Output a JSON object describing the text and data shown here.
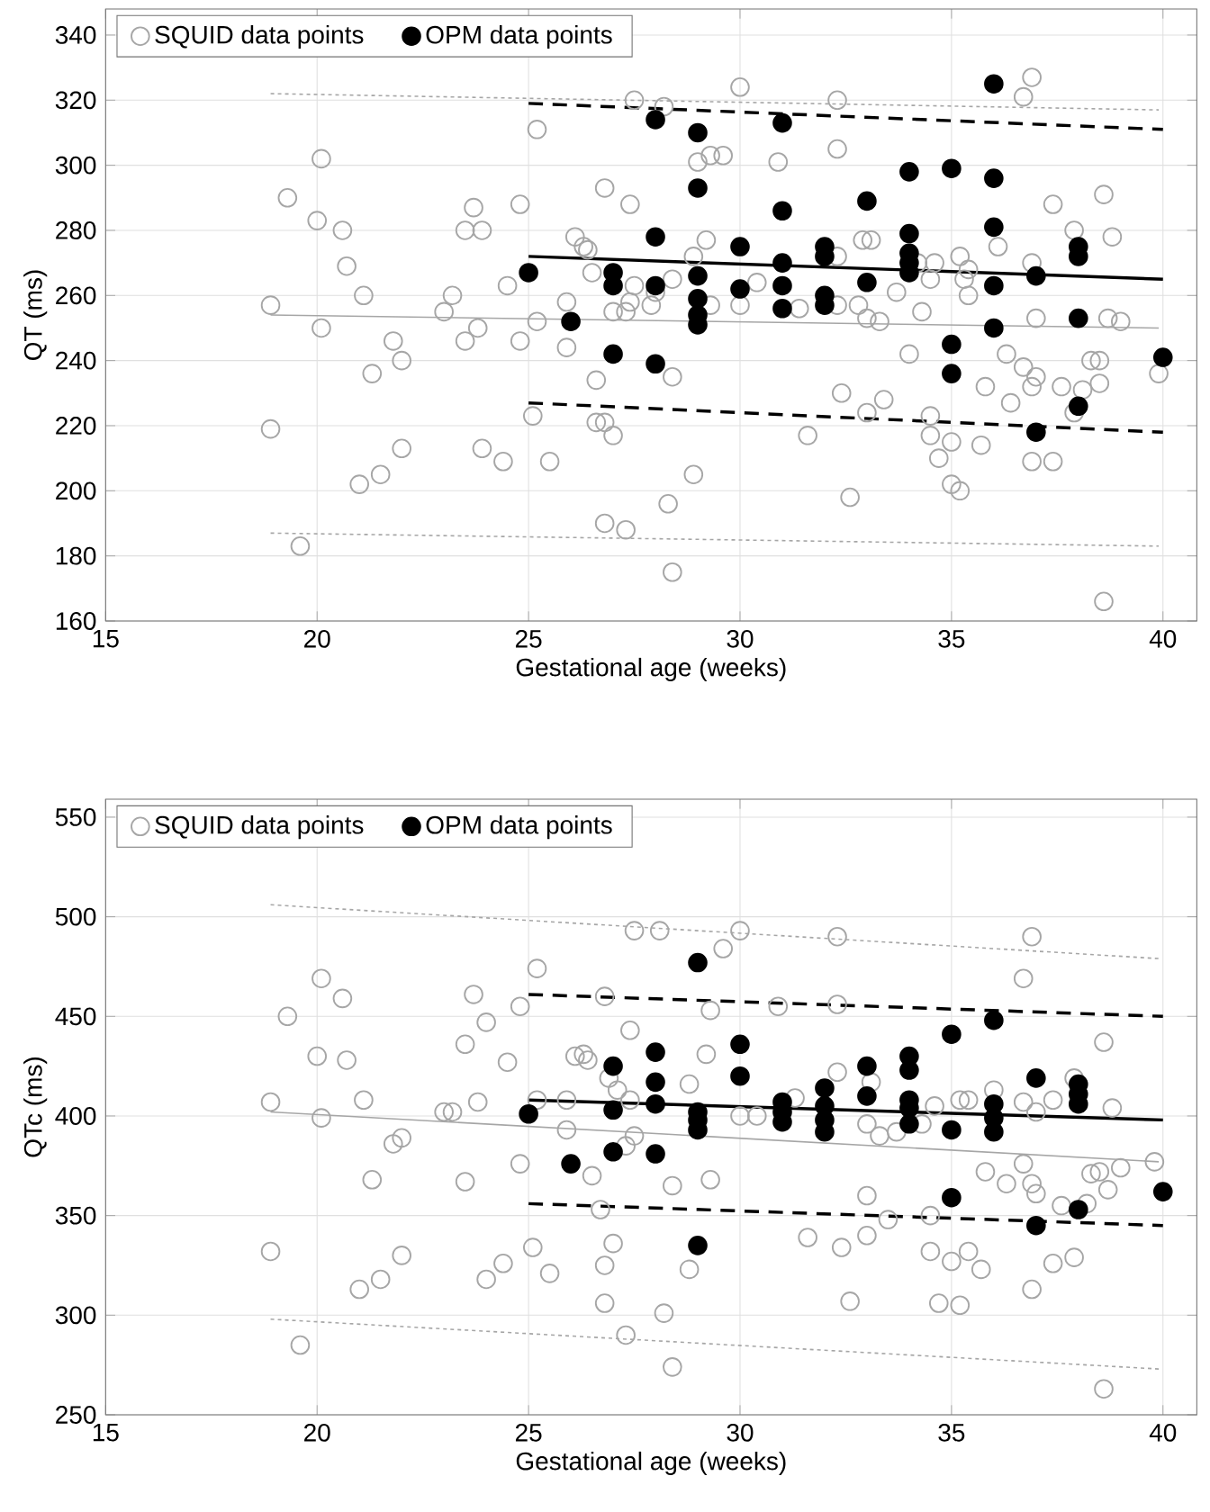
{
  "chart_data": [
    {
      "type": "scatter",
      "xlabel": "Gestational age (weeks)",
      "ylabel": "QT (ms)",
      "xlim": [
        15,
        40.8
      ],
      "ylim": [
        160,
        348
      ],
      "xticks": [
        15,
        20,
        25,
        30,
        35,
        40
      ],
      "yticks": [
        160,
        180,
        200,
        220,
        240,
        260,
        280,
        300,
        320,
        340
      ],
      "grid": true,
      "legend": "top left",
      "marker": "circle",
      "series": [
        {
          "name": "SQUID data points",
          "color": "#a6a6a6",
          "x": [
            18.9,
            19.3,
            18.9,
            19.6,
            20.1,
            20.0,
            20.6,
            20.7,
            20.1,
            21.1,
            21.3,
            21.0,
            21.5,
            21.8,
            22.0,
            22.0,
            23.0,
            23.2,
            23.5,
            23.8,
            23.7,
            23.5,
            23.9,
            23.9,
            24.4,
            24.5,
            24.8,
            24.8,
            25.1,
            25.2,
            25.2,
            25.5,
            25.9,
            25.9,
            26.1,
            26.3,
            26.4,
            26.5,
            26.6,
            26.8,
            26.6,
            26.8,
            27.0,
            26.8,
            27.3,
            27.0,
            27.3,
            27.4,
            27.5,
            27.4,
            27.5,
            28.2,
            27.9,
            28.0,
            28.4,
            28.4,
            28.4,
            28.9,
            29.0,
            29.3,
            29.6,
            29.2,
            29.3,
            28.9,
            28.3,
            30.0,
            30.0,
            30.4,
            30.9,
            31.4,
            31.6,
            32.3,
            32.3,
            32.3,
            32.3,
            32.4,
            32.6,
            32.8,
            32.9,
            33.1,
            33.0,
            33.3,
            33.0,
            33.4,
            33.7,
            34.0,
            34.3,
            34.2,
            34.5,
            34.6,
            34.5,
            34.5,
            34.7,
            35.0,
            35.2,
            35.3,
            35.4,
            35.4,
            35.0,
            35.2,
            35.7,
            35.8,
            36.1,
            36.3,
            36.4,
            36.7,
            36.7,
            36.9,
            36.9,
            37.0,
            36.9,
            37.0,
            36.9,
            37.4,
            37.4,
            37.6,
            37.9,
            38.1,
            38.3,
            38.5,
            38.5,
            38.6,
            38.8,
            38.7,
            39.0,
            39.9,
            38.6,
            37.9
          ],
          "values": [
            257,
            290,
            219,
            183,
            302,
            283,
            280,
            269,
            250,
            260,
            236,
            202,
            205,
            246,
            240,
            213,
            255,
            260,
            246,
            250,
            287,
            280,
            280,
            213,
            209,
            263,
            288,
            246,
            223,
            311,
            252,
            209,
            258,
            244,
            278,
            275,
            274,
            267,
            234,
            293,
            221,
            221,
            217,
            190,
            188,
            255,
            255,
            258,
            263,
            288,
            320,
            318,
            257,
            261,
            265,
            235,
            175,
            272,
            301,
            303,
            303,
            277,
            257,
            205,
            196,
            324,
            257,
            264,
            301,
            256,
            217,
            320,
            305,
            272,
            257,
            230,
            198,
            257,
            277,
            277,
            253,
            252,
            224,
            228,
            261,
            242,
            255,
            270,
            265,
            270,
            223,
            217,
            210,
            215,
            272,
            265,
            268,
            260,
            202,
            200,
            214,
            232,
            275,
            242,
            227,
            238,
            321,
            327,
            270,
            253,
            232,
            235,
            209,
            209,
            288,
            232,
            280,
            231,
            240,
            240,
            233,
            291,
            278,
            253,
            252,
            236,
            166,
            224
          ]
        },
        {
          "name": "OPM data points",
          "color": "#000000",
          "x": [
            25,
            26,
            27,
            27,
            27,
            28,
            28,
            28,
            28,
            29,
            29,
            29,
            29,
            29,
            29,
            30,
            30,
            31,
            31,
            31,
            31,
            31,
            32,
            32,
            32,
            32,
            33,
            33,
            34,
            34,
            34,
            34,
            34,
            35,
            35,
            35,
            36,
            36,
            36,
            36,
            36,
            37,
            37,
            38,
            38,
            38,
            38,
            40
          ],
          "values": [
            267,
            252,
            267,
            263,
            242,
            314,
            278,
            263,
            239,
            310,
            293,
            266,
            259,
            254,
            251,
            275,
            262,
            313,
            286,
            270,
            263,
            256,
            275,
            272,
            260,
            257,
            289,
            264,
            298,
            279,
            273,
            270,
            267,
            299,
            245,
            236,
            325,
            296,
            281,
            263,
            250,
            266,
            218,
            275,
            272,
            253,
            226,
            241
          ]
        },
        {
          "type": "line",
          "color": "#a6a6a6",
          "line_style": "solid",
          "marker": "none",
          "x": [
            18.9,
            39.9
          ],
          "values": [
            254,
            250
          ]
        },
        {
          "type": "line",
          "color": "#a6a6a6",
          "line_style": "dotted",
          "marker": "none",
          "x": [
            18.9,
            39.9
          ],
          "values": [
            322,
            317
          ]
        },
        {
          "type": "line",
          "color": "#a6a6a6",
          "line_style": "dotted",
          "marker": "none",
          "x": [
            18.9,
            39.9
          ],
          "values": [
            187,
            183
          ]
        },
        {
          "type": "line",
          "color": "#000000",
          "line_style": "solid",
          "marker": "none",
          "x": [
            25,
            40
          ],
          "values": [
            272,
            265
          ]
        },
        {
          "type": "line",
          "color": "#000000",
          "line_style": "dashed",
          "marker": "none",
          "x": [
            25,
            40
          ],
          "values": [
            319,
            311
          ]
        },
        {
          "type": "line",
          "color": "#000000",
          "line_style": "dashed",
          "marker": "none",
          "x": [
            25,
            40
          ],
          "values": [
            227,
            218
          ]
        }
      ]
    },
    {
      "type": "scatter",
      "xlabel": "Gestational age (weeks)",
      "ylabel": "QTc (ms)",
      "xlim": [
        15,
        40.8
      ],
      "ylim": [
        250,
        559
      ],
      "xticks": [
        15,
        20,
        25,
        30,
        35,
        40
      ],
      "yticks": [
        250,
        300,
        350,
        400,
        450,
        500,
        550
      ],
      "grid": true,
      "legend": "top left",
      "marker": "circle",
      "series": [
        {
          "name": "SQUID data points",
          "color": "#a6a6a6",
          "x": [
            18.9,
            19.3,
            18.9,
            19.6,
            20.1,
            20.6,
            20.0,
            20.7,
            20.1,
            21.1,
            21.3,
            21.0,
            21.5,
            21.8,
            22.0,
            22.0,
            23.0,
            23.2,
            23.5,
            23.7,
            24.0,
            23.8,
            23.5,
            24.0,
            24.4,
            24.5,
            24.8,
            24.8,
            25.1,
            25.2,
            25.2,
            25.5,
            25.9,
            25.9,
            26.1,
            26.3,
            26.4,
            26.5,
            26.7,
            26.8,
            26.9,
            27.0,
            26.8,
            26.8,
            27.1,
            27.3,
            27.5,
            27.4,
            27.4,
            27.3,
            27.5,
            28.1,
            28.2,
            28.4,
            28.4,
            28.8,
            28.8,
            29.2,
            29.3,
            29.3,
            29.6,
            30.0,
            30.0,
            30.4,
            30.9,
            31.3,
            31.6,
            32.3,
            32.3,
            32.3,
            32.4,
            32.6,
            33.0,
            33.0,
            33.3,
            33.1,
            33.0,
            33.5,
            33.7,
            34.5,
            34.5,
            34.3,
            34.6,
            34.7,
            35.0,
            35.2,
            35.2,
            35.4,
            35.4,
            35.7,
            35.8,
            36.0,
            36.3,
            36.7,
            36.7,
            36.9,
            36.7,
            36.9,
            37.0,
            37.0,
            36.9,
            37.4,
            37.6,
            37.9,
            37.4,
            37.9,
            38.2,
            38.3,
            38.5,
            38.6,
            38.7,
            38.8,
            39.0,
            39.8,
            38.6
          ],
          "values": [
            407,
            450,
            332,
            285,
            469,
            459,
            430,
            428,
            399,
            408,
            368,
            313,
            318,
            386,
            389,
            330,
            402,
            402,
            436,
            461,
            447,
            407,
            367,
            318,
            326,
            427,
            455,
            376,
            334,
            474,
            408,
            321,
            408,
            393,
            430,
            431,
            428,
            370,
            353,
            460,
            419,
            336,
            325,
            306,
            413,
            290,
            493,
            443,
            408,
            385,
            390,
            493,
            301,
            365,
            274,
            416,
            323,
            431,
            368,
            453,
            484,
            493,
            400,
            400,
            455,
            409,
            339,
            490,
            456,
            422,
            334,
            307,
            360,
            396,
            390,
            417,
            340,
            348,
            392,
            350,
            332,
            396,
            405,
            306,
            327,
            305,
            408,
            408,
            332,
            323,
            372,
            413,
            366,
            407,
            469,
            490,
            376,
            366,
            402,
            361,
            313,
            326,
            355,
            329,
            408,
            419,
            356,
            371,
            372,
            437,
            363,
            404,
            374,
            377,
            263
          ]
        },
        {
          "name": "OPM data points",
          "color": "#000000",
          "x": [
            25,
            26,
            27,
            27,
            27,
            28,
            28,
            28,
            28,
            29,
            29,
            29,
            29,
            29,
            30,
            30,
            31,
            31,
            31,
            32,
            32,
            32,
            32,
            33,
            33,
            34,
            34,
            34,
            34,
            34,
            35,
            35,
            35,
            36,
            36,
            36,
            36,
            37,
            37,
            38,
            38,
            38,
            38,
            40
          ],
          "values": [
            401,
            376,
            425,
            403,
            382,
            432,
            417,
            406,
            381,
            477,
            402,
            398,
            393,
            335,
            436,
            420,
            407,
            402,
            397,
            414,
            405,
            398,
            392,
            425,
            410,
            430,
            423,
            408,
            404,
            396,
            441,
            393,
            359,
            448,
            406,
            399,
            392,
            419,
            345,
            416,
            411,
            406,
            353,
            362
          ]
        },
        {
          "type": "line",
          "color": "#a6a6a6",
          "line_style": "solid",
          "marker": "none",
          "x": [
            18.9,
            39.9
          ],
          "values": [
            402,
            377
          ]
        },
        {
          "type": "line",
          "color": "#a6a6a6",
          "line_style": "dotted",
          "marker": "none",
          "x": [
            18.9,
            39.9
          ],
          "values": [
            506,
            479
          ]
        },
        {
          "type": "line",
          "color": "#a6a6a6",
          "line_style": "dotted",
          "marker": "none",
          "x": [
            18.9,
            39.9
          ],
          "values": [
            298,
            273
          ]
        },
        {
          "type": "line",
          "color": "#000000",
          "line_style": "solid",
          "marker": "none",
          "x": [
            25,
            40
          ],
          "values": [
            408,
            398
          ]
        },
        {
          "type": "line",
          "color": "#000000",
          "line_style": "dashed",
          "marker": "none",
          "x": [
            25,
            40
          ],
          "values": [
            461,
            450
          ]
        },
        {
          "type": "line",
          "color": "#000000",
          "line_style": "dashed",
          "marker": "none",
          "x": [
            25,
            40
          ],
          "values": [
            356,
            345
          ]
        }
      ]
    }
  ]
}
